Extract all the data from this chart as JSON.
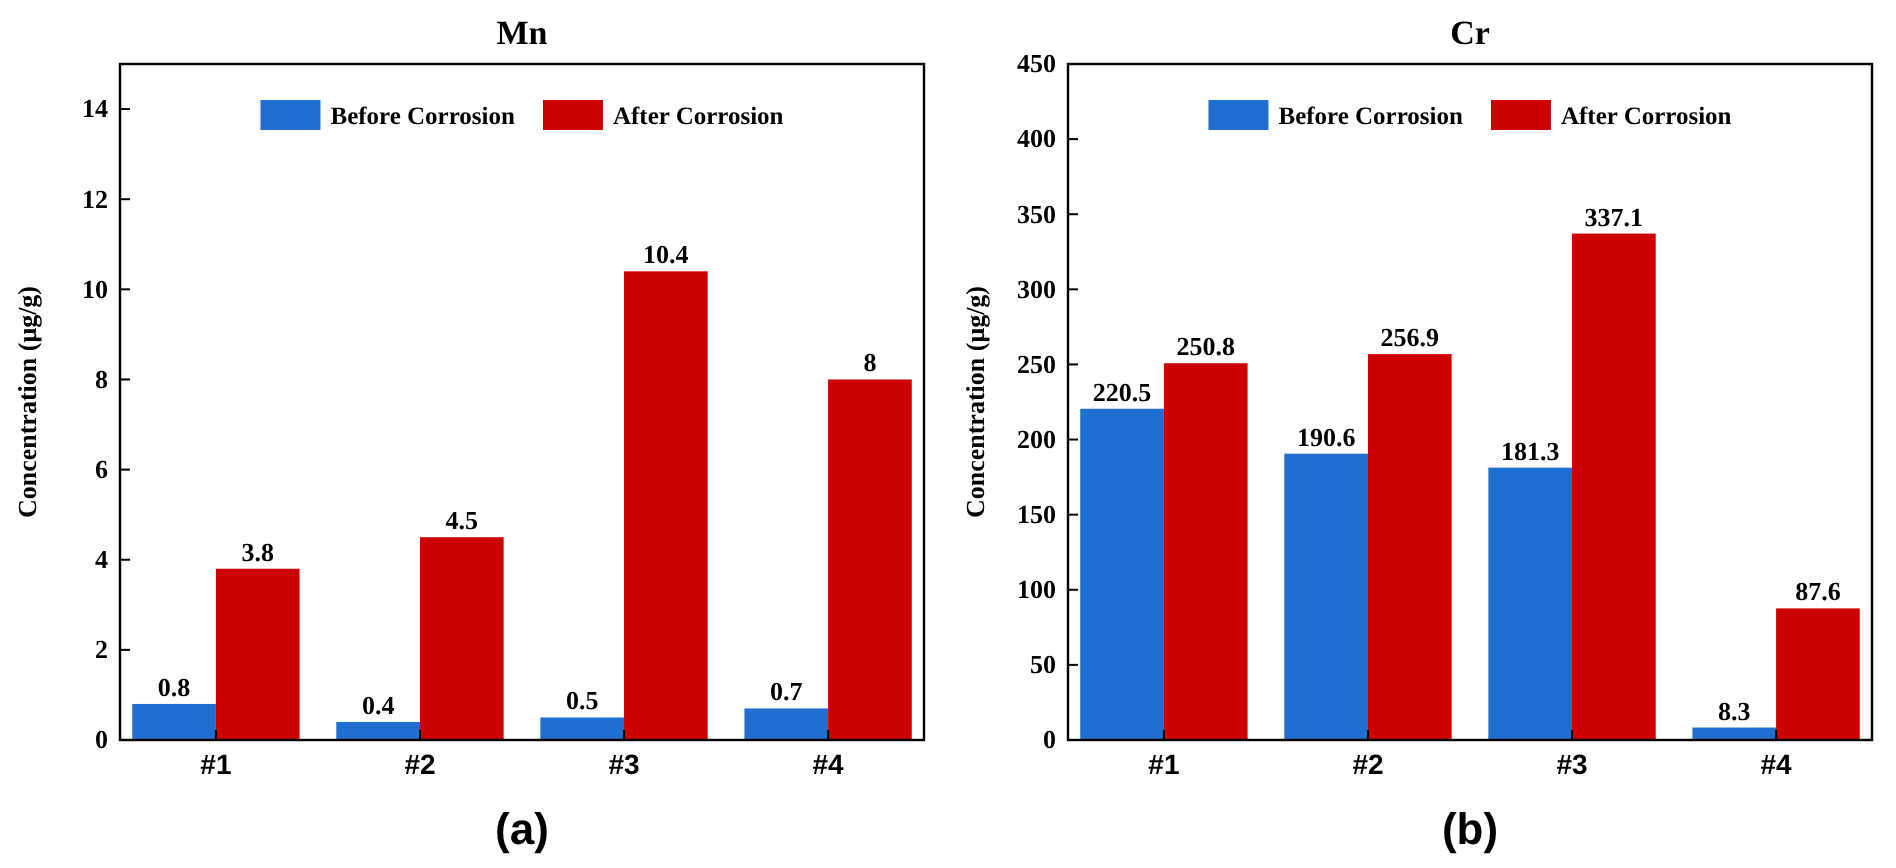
{
  "chart_data": [
    {
      "type": "bar",
      "title": "Mn",
      "ylabel": "Concentration (μg/g)",
      "categories": [
        "#1",
        "#2",
        "#3",
        "#4"
      ],
      "series": [
        {
          "name": "Before Corrosion",
          "color": "#1f6fd0",
          "values": [
            0.8,
            0.4,
            0.5,
            0.7
          ]
        },
        {
          "name": "After Corrosion",
          "color": "#cc0000",
          "values": [
            3.8,
            4.5,
            10.4,
            8
          ]
        }
      ],
      "ylim": [
        0,
        15
      ],
      "yticks": [
        0,
        2,
        4,
        6,
        8,
        10,
        12,
        14
      ],
      "legend": "top",
      "data_labels": true,
      "grid": false,
      "annotations": [
        "(a)"
      ]
    },
    {
      "type": "bar",
      "title": "Cr",
      "ylabel": "Concentration (μg/g)",
      "categories": [
        "#1",
        "#2",
        "#3",
        "#4"
      ],
      "series": [
        {
          "name": "Before Corrosion",
          "color": "#1f6fd0",
          "values": [
            220.5,
            190.6,
            181.3,
            8.3
          ]
        },
        {
          "name": "After Corrosion",
          "color": "#cc0000",
          "values": [
            250.8,
            256.9,
            337.1,
            87.6
          ]
        }
      ],
      "ylim": [
        0,
        450
      ],
      "yticks": [
        0,
        50,
        100,
        150,
        200,
        250,
        300,
        350,
        400,
        450
      ],
      "legend": "top",
      "data_labels": true,
      "grid": false,
      "annotations": [
        "(b)"
      ]
    }
  ]
}
